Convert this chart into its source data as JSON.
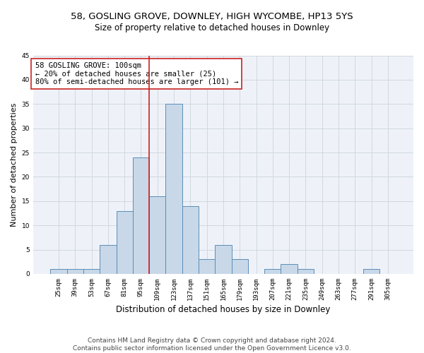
{
  "title_line1": "58, GOSLING GROVE, DOWNLEY, HIGH WYCOMBE, HP13 5YS",
  "title_line2": "Size of property relative to detached houses in Downley",
  "xlabel": "Distribution of detached houses by size in Downley",
  "ylabel": "Number of detached properties",
  "footer_line1": "Contains HM Land Registry data © Crown copyright and database right 2024.",
  "footer_line2": "Contains public sector information licensed under the Open Government Licence v3.0.",
  "annotation_line1": "58 GOSLING GROVE: 100sqm",
  "annotation_line2": "← 20% of detached houses are smaller (25)",
  "annotation_line3": "80% of semi-detached houses are larger (101) →",
  "bar_categories": [
    "25sqm",
    "39sqm",
    "53sqm",
    "67sqm",
    "81sqm",
    "95sqm",
    "109sqm",
    "123sqm",
    "137sqm",
    "151sqm",
    "165sqm",
    "179sqm",
    "193sqm",
    "207sqm",
    "221sqm",
    "235sqm",
    "249sqm",
    "263sqm",
    "277sqm",
    "291sqm",
    "305sqm"
  ],
  "bar_values": [
    1,
    1,
    1,
    6,
    13,
    24,
    16,
    35,
    14,
    3,
    6,
    3,
    0,
    1,
    2,
    1,
    0,
    0,
    0,
    1,
    0
  ],
  "bar_color": "#c8d8e8",
  "bar_edge_color": "#5b8db8",
  "bar_width": 1.0,
  "grid_color": "#d0d8e0",
  "background_color": "#eef2f8",
  "ylim": [
    0,
    45
  ],
  "yticks": [
    0,
    5,
    10,
    15,
    20,
    25,
    30,
    35,
    40,
    45
  ],
  "vline_x": 5.5,
  "vline_color": "#cc2222",
  "annotation_box_color": "#ffffff",
  "annotation_box_edge": "#cc2222",
  "title1_fontsize": 9.5,
  "title2_fontsize": 8.5,
  "xlabel_fontsize": 8.5,
  "ylabel_fontsize": 8,
  "tick_fontsize": 6.5,
  "annotation_fontsize": 7.5,
  "footer_fontsize": 6.5
}
